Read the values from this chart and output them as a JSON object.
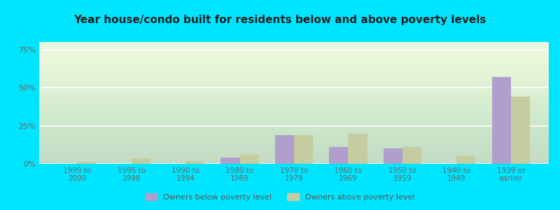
{
  "title": "Year house/condo built for residents below and above poverty levels",
  "categories": [
    "1999 to\n2000",
    "1995 to\n1998",
    "1990 to\n1994",
    "1980 to\n1989",
    "1970 to\n1979",
    "1960 to\n1969",
    "1950 to\n1959",
    "1940 to\n1949",
    "1939 or\nearlier"
  ],
  "below_poverty": [
    0.0,
    0.0,
    0.0,
    4.0,
    19.0,
    11.0,
    10.0,
    0.0,
    57.0
  ],
  "above_poverty": [
    1.5,
    3.5,
    2.0,
    6.0,
    19.0,
    20.0,
    11.0,
    5.0,
    44.0
  ],
  "below_color": "#b09fcc",
  "above_color": "#c5cc9f",
  "background_color": "#e8f5e0",
  "ylim": [
    0,
    80
  ],
  "yticks": [
    0,
    25,
    50,
    75
  ],
  "ytick_labels": [
    "0%",
    "25%",
    "50%",
    "75%"
  ],
  "legend_below": "Owners below poverty level",
  "legend_above": "Owners above poverty level",
  "fig_bg_color": "#00e5ff",
  "title_fontsize": 11,
  "bar_width": 0.35
}
